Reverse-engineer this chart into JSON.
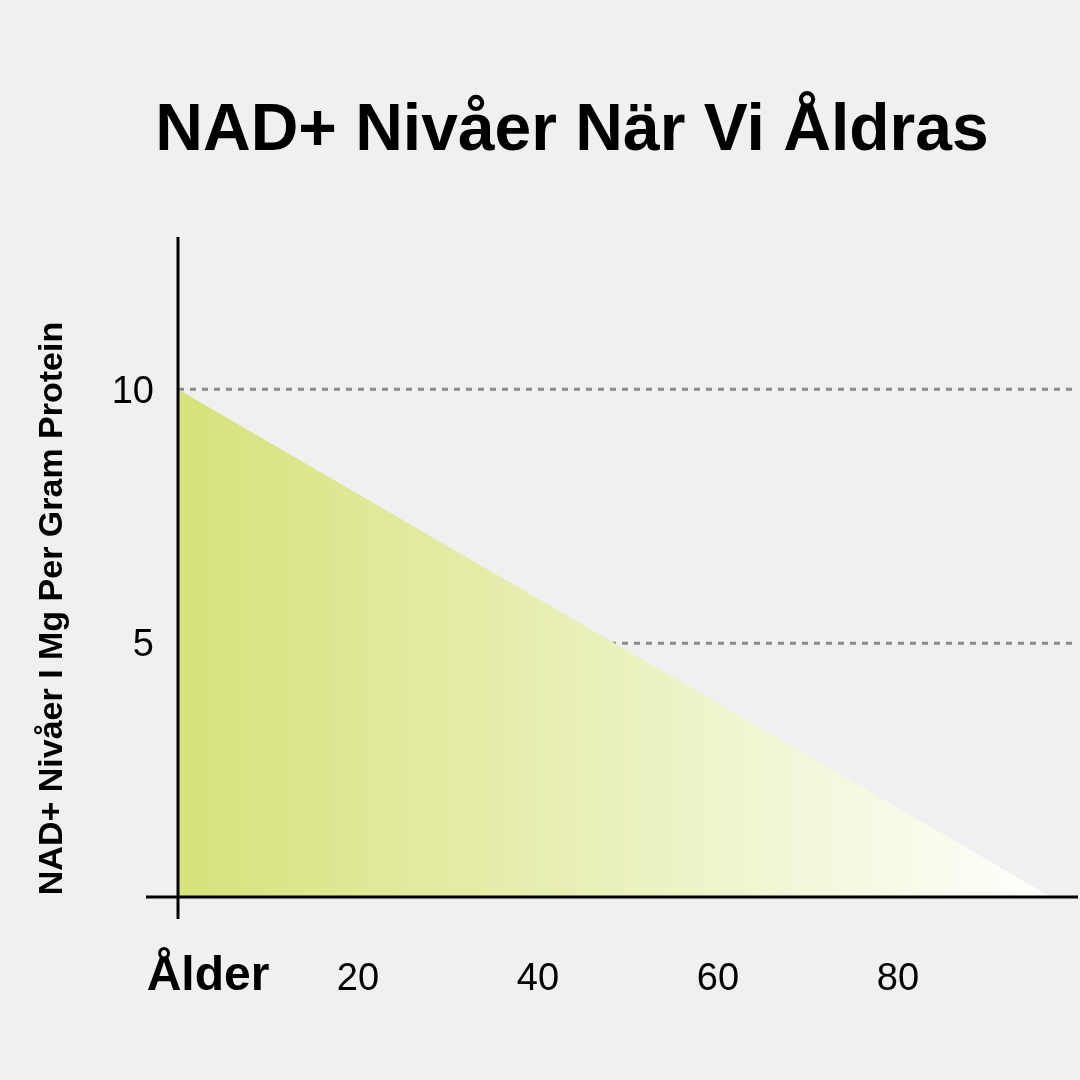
{
  "chart_data": {
    "type": "area",
    "title": "NAD+ Nivåer När Vi Åldras",
    "xlabel": "Ålder",
    "ylabel": "NAD+ Nivåer I Mg Per Gram Protein",
    "x": [
      0,
      97
    ],
    "series": [
      {
        "color": "#d6e27a",
        "values": [
          10,
          0
        ]
      }
    ],
    "xlim": [
      0,
      100
    ],
    "xticks": [
      20,
      40,
      60,
      80
    ],
    "ylim": [
      0,
      13
    ],
    "yticks": [
      {
        "value": 0,
        "label": null
      },
      5,
      10
    ],
    "grid": "y",
    "line_style": "dashed"
  }
}
